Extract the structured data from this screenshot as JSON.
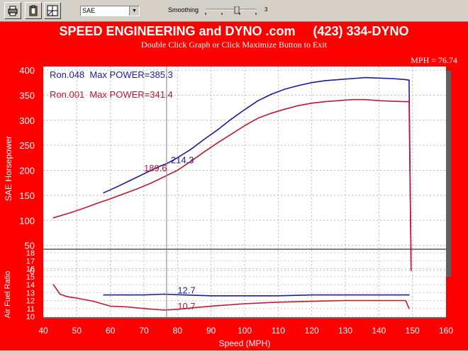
{
  "toolbar": {
    "buttons": [
      {
        "name": "print-button",
        "icon": "printer-icon"
      },
      {
        "name": "clipboard-button",
        "icon": "clipboard-icon"
      },
      {
        "name": "layout-button",
        "icon": "layout-icon"
      }
    ],
    "standard_select": "SAE",
    "smoothing_label": "Smoothing",
    "smoothing_value": "3"
  },
  "header": {
    "title": "SPEED ENGINEERING and DYNO .com     (423) 334-DYNO",
    "subtitle": "Double Click Graph or Click Maximize Button to Exit",
    "mph_readout": "MPH = 76.74"
  },
  "colors": {
    "background": "#ff0000",
    "plot_bg": "#ffffff",
    "run_048": "#1a1aa8",
    "run_001": "#c01830",
    "cursor": "#808080"
  },
  "chart_data": [
    {
      "type": "line",
      "id": "power",
      "ylabel": "SAE Horsepower",
      "ylim": [
        0,
        400
      ],
      "yticks": [
        0,
        50,
        100,
        150,
        200,
        250,
        300,
        350,
        400
      ],
      "xlim": [
        40,
        160
      ],
      "grid": true,
      "legend": [
        {
          "text": "Ron.048  Max POWER=385.3"
        },
        {
          "text": "Ron.001  Max POWER=341.4"
        }
      ],
      "cursor_x": 76.74,
      "series": [
        {
          "x": [
            58,
            62,
            66,
            70,
            74,
            77,
            80,
            84,
            88,
            92,
            96,
            100,
            104,
            108,
            112,
            116,
            120,
            124,
            128,
            132,
            136,
            140,
            144,
            148,
            149,
            149.6
          ],
          "y": [
            155,
            167,
            180,
            193,
            206,
            214,
            225,
            242,
            262,
            281,
            302,
            321,
            339,
            352,
            362,
            369,
            375,
            379,
            381,
            383,
            385,
            384,
            383,
            381,
            380,
            0
          ]
        },
        {
          "x": [
            43,
            48,
            52,
            56,
            60,
            64,
            68,
            72,
            76,
            80,
            84,
            88,
            92,
            96,
            100,
            104,
            108,
            112,
            116,
            120,
            124,
            128,
            132,
            136,
            140,
            144,
            148,
            149,
            149.6
          ],
          "y": [
            105,
            115,
            124,
            134,
            143,
            153,
            163,
            174,
            187,
            200,
            218,
            237,
            255,
            272,
            289,
            304,
            314,
            322,
            329,
            334,
            337,
            339,
            341,
            341,
            339,
            338,
            337,
            337,
            0
          ]
        }
      ],
      "annotations": [
        {
          "text": "214.3",
          "x": 78,
          "y": 214
        },
        {
          "text": "189.6",
          "x": 70,
          "y": 198
        }
      ]
    },
    {
      "type": "line",
      "id": "afr",
      "ylabel": "Air Fuel Ratio",
      "xlabel": "Speed (MPH)",
      "ylim": [
        10,
        18
      ],
      "yticks": [
        10,
        11,
        12,
        13,
        14,
        15,
        16,
        17,
        18
      ],
      "xlim": [
        40,
        160
      ],
      "xticks": [
        40,
        50,
        60,
        70,
        80,
        90,
        100,
        110,
        120,
        130,
        140,
        150,
        160
      ],
      "grid": true,
      "series": [
        {
          "x": [
            58,
            65,
            70,
            76,
            82,
            90,
            100,
            110,
            120,
            130,
            140,
            149
          ],
          "y": [
            12.7,
            12.7,
            12.7,
            12.8,
            12.7,
            12.6,
            12.6,
            12.6,
            12.7,
            12.7,
            12.7,
            12.7
          ]
        },
        {
          "x": [
            43,
            45,
            47,
            50,
            55,
            60,
            65,
            70,
            76,
            80,
            85,
            90,
            100,
            110,
            120,
            130,
            140,
            148,
            149
          ],
          "y": [
            14.0,
            12.8,
            12.5,
            12.3,
            11.9,
            11.3,
            11.2,
            11.0,
            10.8,
            10.9,
            11.1,
            11.3,
            11.6,
            11.8,
            11.9,
            12.0,
            12.0,
            12.0,
            11.0
          ]
        }
      ],
      "annotations": [
        {
          "text": "12.7",
          "x": 80,
          "y": 12.9
        },
        {
          "text": "10.7",
          "x": 80,
          "y": 10.9
        }
      ]
    }
  ]
}
